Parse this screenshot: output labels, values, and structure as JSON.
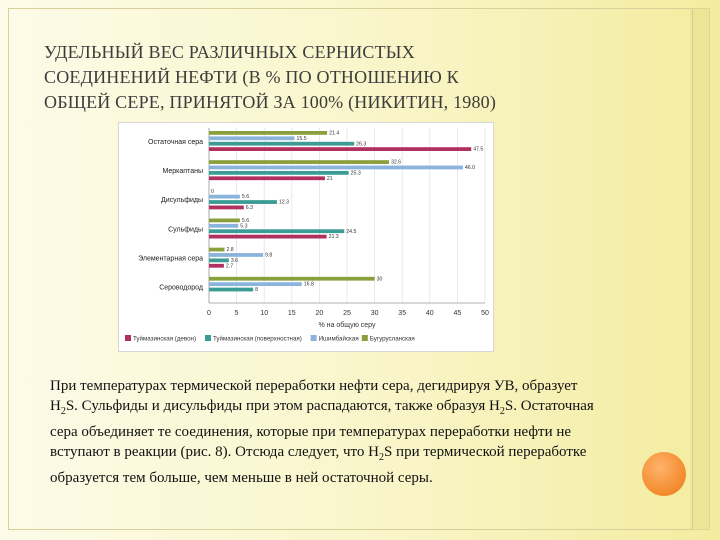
{
  "slide": {
    "title_lines": [
      "УДЕЛЬНЫЙ ВЕС РАЗЛИЧНЫХ СЕРНИСТЫХ",
      "СОЕДИНЕНИЙ НЕФТИ (В % ПО ОТНОШЕНИЮ К",
      "ОБЩЕЙ СЕРЕ, ПРИНЯТОЙ ЗА 100%  (НИКИТИН, 1980)"
    ],
    "body": {
      "p1": "При температурах термической переработки нефти сера, дегидрируя УВ, образует H",
      "sub1": "2",
      "p2": "S. Сульфиды и дисульфиды при этом распадаются, также образуя H",
      "sub2": "2",
      "p3": "S. Остаточная сера объединяет те соединения, которые при температурах переработки нефти не вступают в реакции (рис. 8). Отсюда следует, что H",
      "sub3": "2",
      "p4": "S при термической переработке образуется тем больше, чем меньше в ней остаточной серы."
    }
  },
  "chart_data": {
    "type": "bar",
    "orientation": "horizontal",
    "categories": [
      "Остаточная сера",
      "Меркаптаны",
      "Дисульфиды",
      "Сульфиды",
      "Элементарная сера",
      "Сероводород"
    ],
    "series": [
      {
        "name": "Бугурусланская",
        "color": "#8aa03c",
        "values": [
          21.4,
          32.6,
          0,
          5.6,
          2.8,
          30
        ]
      },
      {
        "name": "Ишимбайская",
        "color": "#8ab4dc",
        "values": [
          15.5,
          46.0,
          5.6,
          5.3,
          9.8,
          16.8
        ]
      },
      {
        "name": "Туймазинская (поверхностная)",
        "color": "#3a9c94",
        "values": [
          26.3,
          25.3,
          12.3,
          24.5,
          3.6,
          8.0
        ]
      },
      {
        "name": "Туймазинская (девон)",
        "color": "#b03060",
        "values": [
          47.5,
          21.0,
          6.3,
          21.3,
          2.7,
          null
        ]
      }
    ],
    "labels": [
      [
        "21.4",
        "15.5",
        "26.3",
        "47.5"
      ],
      [
        "32.6",
        "46.0",
        "25.3",
        "21"
      ],
      [
        "0",
        "5.6",
        "12.3",
        "6.3"
      ],
      [
        "5.6",
        "5.3",
        "24.5",
        "21.3"
      ],
      [
        "2.8",
        "9.8",
        "3.6",
        "2.7"
      ],
      [
        "30",
        "16.8",
        "8",
        ""
      ]
    ],
    "xlabel": "% на общую серу",
    "xlim": [
      0,
      50
    ],
    "xticks": [
      "0",
      "5",
      "10",
      "15",
      "20",
      "25",
      "30",
      "35",
      "40",
      "45",
      "50"
    ],
    "grid": true,
    "legend_position": "bottom",
    "legend_order": [
      "Туймазинская (девон)",
      "Туймазинская (поверхностная)",
      "Ишимбайская",
      "Бугурусланская"
    ]
  }
}
